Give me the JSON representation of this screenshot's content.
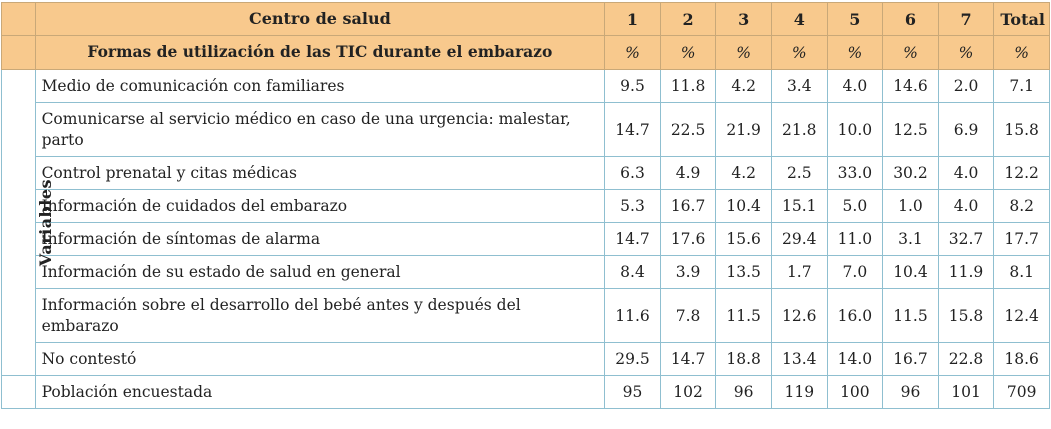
{
  "header": {
    "center_label": "Centro de salud",
    "subheader": "Formas de utilización de las TIC durante el embarazo",
    "columns": [
      "1",
      "2",
      "3",
      "4",
      "5",
      "6",
      "7",
      "Total"
    ],
    "units": [
      "%",
      "%",
      "%",
      "%",
      "%",
      "%",
      "%",
      "%"
    ]
  },
  "side_label": "Variables",
  "rows": [
    {
      "label": "Medio de comunicación con familiares",
      "values": [
        "9.5",
        "11.8",
        "4.2",
        "3.4",
        "4.0",
        "14.6",
        "2.0",
        "7.1"
      ]
    },
    {
      "label": "Comunicarse al servicio médico en caso de una urgencia: malestar, parto",
      "values": [
        "14.7",
        "22.5",
        "21.9",
        "21.8",
        "10.0",
        "12.5",
        "6.9",
        "15.8"
      ]
    },
    {
      "label": "Control prenatal y citas médicas",
      "values": [
        "6.3",
        "4.9",
        "4.2",
        "2.5",
        "33.0",
        "30.2",
        "4.0",
        "12.2"
      ]
    },
    {
      "label": "Información de cuidados del embarazo",
      "values": [
        "5.3",
        "16.7",
        "10.4",
        "15.1",
        "5.0",
        "1.0",
        "4.0",
        "8.2"
      ]
    },
    {
      "label": "Información de síntomas de alarma",
      "values": [
        "14.7",
        "17.6",
        "15.6",
        "29.4",
        "11.0",
        "3.1",
        "32.7",
        "17.7"
      ]
    },
    {
      "label": "Información de su estado de salud en general",
      "values": [
        "8.4",
        "3.9",
        "13.5",
        "1.7",
        "7.0",
        "10.4",
        "11.9",
        "8.1"
      ]
    },
    {
      "label": "Información sobre el desarrollo del bebé antes y después del embarazo",
      "values": [
        "11.6",
        "7.8",
        "11.5",
        "12.6",
        "16.0",
        "11.5",
        "15.8",
        "12.4"
      ]
    },
    {
      "label": "No contestó",
      "values": [
        "29.5",
        "14.7",
        "18.8",
        "13.4",
        "14.0",
        "16.7",
        "22.8",
        "18.6"
      ]
    }
  ],
  "footer": {
    "label": "Población encuestada",
    "values": [
      "95",
      "102",
      "96",
      "119",
      "100",
      "96",
      "101",
      "709"
    ]
  },
  "colors": {
    "header_bg": "#f8c98d",
    "border": "#8fbfd0"
  }
}
